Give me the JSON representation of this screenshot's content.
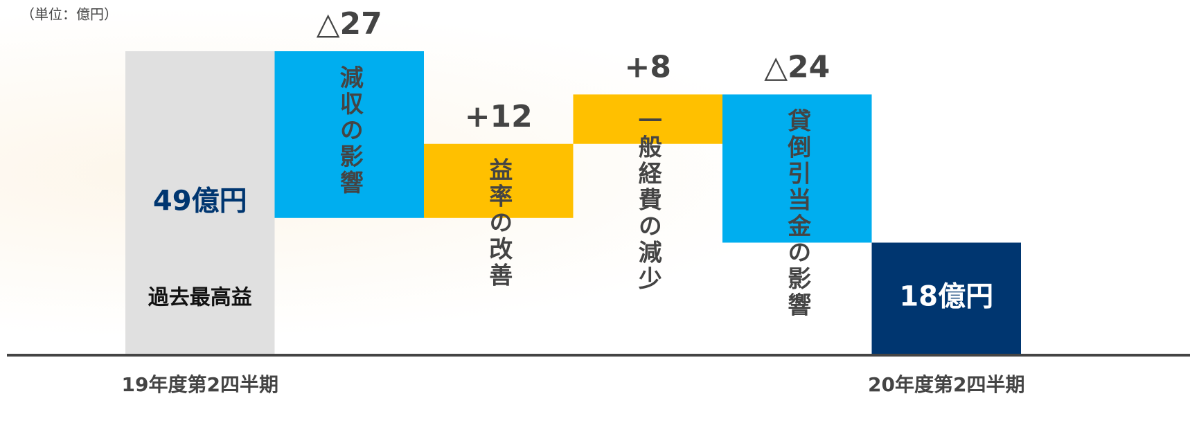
{
  "chart_data": {
    "type": "waterfall",
    "unit": "（単位：億円）",
    "categories": [
      "19年度第2四半期",
      null,
      null,
      null,
      null,
      "20年度第2四半期"
    ],
    "bar_labels": [
      "過去最高益",
      "減収の影響",
      "益率の改善",
      "一般経費の減少",
      "貸倒引当金の影響",
      null
    ],
    "values": [
      49,
      -27,
      12,
      8,
      -24,
      18
    ],
    "value_labels": [
      "49億円",
      "△27",
      "+12",
      "+8",
      "△24",
      "18億円"
    ],
    "colors": [
      "#e0e0e0",
      "#00aeef",
      "#ffc000",
      "#ffc000",
      "#00aeef",
      "#003670"
    ],
    "ylim": [
      0,
      49
    ]
  }
}
